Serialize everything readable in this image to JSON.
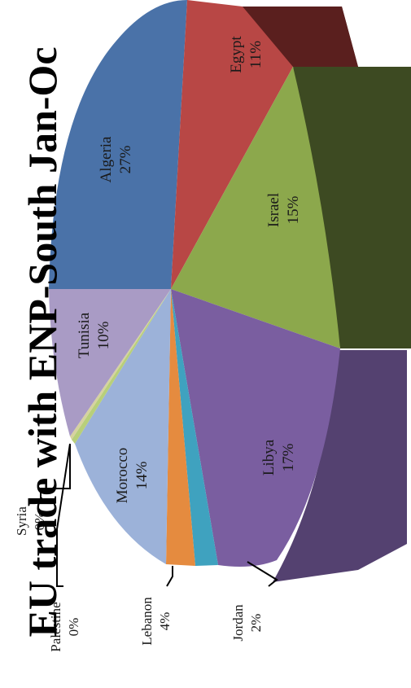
{
  "chart_data": {
    "type": "pie",
    "title": "EU trade with ENP-South Jan-Oc",
    "slices": [
      {
        "label": "Algeria",
        "value": 27,
        "value_label": "27%",
        "color": "#4a72a8"
      },
      {
        "label": "Egypt",
        "value": 11,
        "value_label": "11%",
        "color": "#b84745"
      },
      {
        "label": "",
        "value": 6,
        "value_label": "",
        "color": "#5a1f1e"
      },
      {
        "label": "Israel",
        "value": 15,
        "value_label": "15%",
        "color": "#8ca84c"
      },
      {
        "label": "Libya",
        "value": 17,
        "value_label": "17%",
        "color": "#7a5ea0"
      },
      {
        "label": "Jordan",
        "value": 2,
        "value_label": "2%",
        "color": "#3fa2bf"
      },
      {
        "label": "Lebanon",
        "value": 4,
        "value_label": "4%",
        "color": "#e58b3f"
      },
      {
        "label": "Morocco",
        "value": 14,
        "value_label": "14%",
        "color": "#9cb2d9"
      },
      {
        "label": "Palestine",
        "value": 0,
        "value_label": "0%",
        "color": "#b8cf7a"
      },
      {
        "label": "Syria",
        "value": 0,
        "value_label": "0%",
        "color": "#d6d2a0"
      },
      {
        "label": "Tunisia",
        "value": 10,
        "value_label": "10%",
        "color": "#a99bc5"
      }
    ]
  }
}
